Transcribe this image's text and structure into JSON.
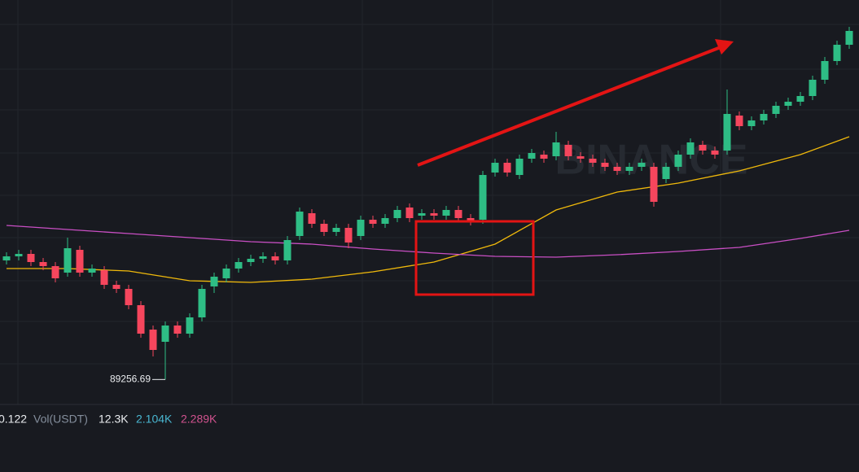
{
  "chart_data": {
    "type": "candlestick",
    "watermark": "BINANCE",
    "up_color": "#2ebd85",
    "down_color": "#f6465d",
    "ylim": [
      88950,
      93920
    ],
    "open": [
      90720,
      90770,
      90800,
      90700,
      90650,
      90570,
      90850,
      90570,
      90600,
      90420,
      90370,
      90170,
      89870,
      89720,
      89920,
      89820,
      90020,
      90400,
      90500,
      90620,
      90700,
      90740,
      90770,
      90720,
      91020,
      91300,
      91170,
      91070,
      91120,
      91020,
      91220,
      91170,
      91240,
      91370,
      91270,
      91300,
      91270,
      91340,
      91240,
      91220,
      91800,
      91920,
      91770,
      91970,
      92020,
      92000,
      92140,
      92000,
      91970,
      91920,
      91870,
      91820,
      91870,
      91870,
      91720,
      91870,
      92020,
      92140,
      92070,
      92070,
      92500,
      92370,
      92440,
      92520,
      92620,
      92670,
      92740,
      92940,
      93170,
      93370
    ],
    "high": [
      90820,
      90850,
      90850,
      90750,
      90700,
      91000,
      90900,
      90670,
      90650,
      90470,
      90420,
      90220,
      89920,
      89970,
      89970,
      90070,
      90420,
      90570,
      90670,
      90750,
      90790,
      90820,
      90820,
      91020,
      91370,
      91350,
      91220,
      91170,
      91170,
      91270,
      91270,
      91290,
      91390,
      91420,
      91350,
      91350,
      91390,
      91390,
      91290,
      91820,
      91970,
      91970,
      92020,
      92090,
      92070,
      92300,
      92190,
      92050,
      92020,
      91970,
      91920,
      91920,
      91970,
      91920,
      91920,
      92070,
      92220,
      92190,
      92120,
      92820,
      92550,
      92490,
      92570,
      92670,
      92720,
      92790,
      92990,
      93220,
      93420,
      93590
    ],
    "low": [
      90670,
      90720,
      90650,
      90600,
      90450,
      90520,
      90520,
      90520,
      90370,
      90320,
      90120,
      89770,
      89540,
      89256.69,
      89770,
      89770,
      89970,
      90320,
      90450,
      90570,
      90650,
      90690,
      90670,
      90670,
      90970,
      91120,
      91020,
      91020,
      90870,
      90970,
      91120,
      91120,
      91190,
      91190,
      91220,
      91220,
      91220,
      91190,
      91150,
      91170,
      91750,
      91750,
      91720,
      91920,
      91920,
      91950,
      91950,
      91920,
      91870,
      91820,
      91770,
      91770,
      91820,
      91380,
      91670,
      91820,
      91970,
      92020,
      91970,
      92020,
      92320,
      92320,
      92390,
      92470,
      92570,
      92620,
      92690,
      92890,
      93120,
      93320
    ],
    "close": [
      90770,
      90800,
      90700,
      90650,
      90500,
      90870,
      90570,
      90620,
      90420,
      90370,
      90170,
      89820,
      89620,
      89920,
      89820,
      90020,
      90370,
      90520,
      90620,
      90700,
      90740,
      90770,
      90720,
      90970,
      91320,
      91170,
      91070,
      91120,
      90940,
      91220,
      91170,
      91240,
      91340,
      91240,
      91300,
      91270,
      91340,
      91240,
      91200,
      91770,
      91920,
      91800,
      91970,
      92040,
      91970,
      92170,
      92000,
      91970,
      91920,
      91870,
      91820,
      91870,
      91920,
      91440,
      91870,
      92020,
      92170,
      92070,
      92020,
      92520,
      92370,
      92440,
      92520,
      92620,
      92670,
      92740,
      92940,
      93170,
      93370,
      93540
    ],
    "ma": [
      {
        "color": "#f0b90b",
        "x": [
          0,
          5,
          10,
          15,
          20,
          25,
          30,
          35,
          40,
          45,
          50,
          55,
          60,
          65,
          69
        ],
        "values": [
          90620,
          90620,
          90590,
          90470,
          90450,
          90490,
          90580,
          90700,
          90920,
          91340,
          91560,
          91670,
          91820,
          92020,
          92240
        ]
      },
      {
        "color": "#c94fc4",
        "x": [
          0,
          5,
          10,
          15,
          20,
          25,
          30,
          35,
          40,
          45,
          50,
          55,
          60,
          65,
          69
        ],
        "values": [
          91150,
          91100,
          91050,
          91000,
          90950,
          90920,
          90860,
          90810,
          90770,
          90760,
          90790,
          90830,
          90880,
          90990,
          91090
        ]
      }
    ]
  },
  "volume_legend": {
    "value": "0.122",
    "label": "Vol(USDT)",
    "items": [
      "12.3K",
      "2.104K",
      "2.289K"
    ]
  }
}
